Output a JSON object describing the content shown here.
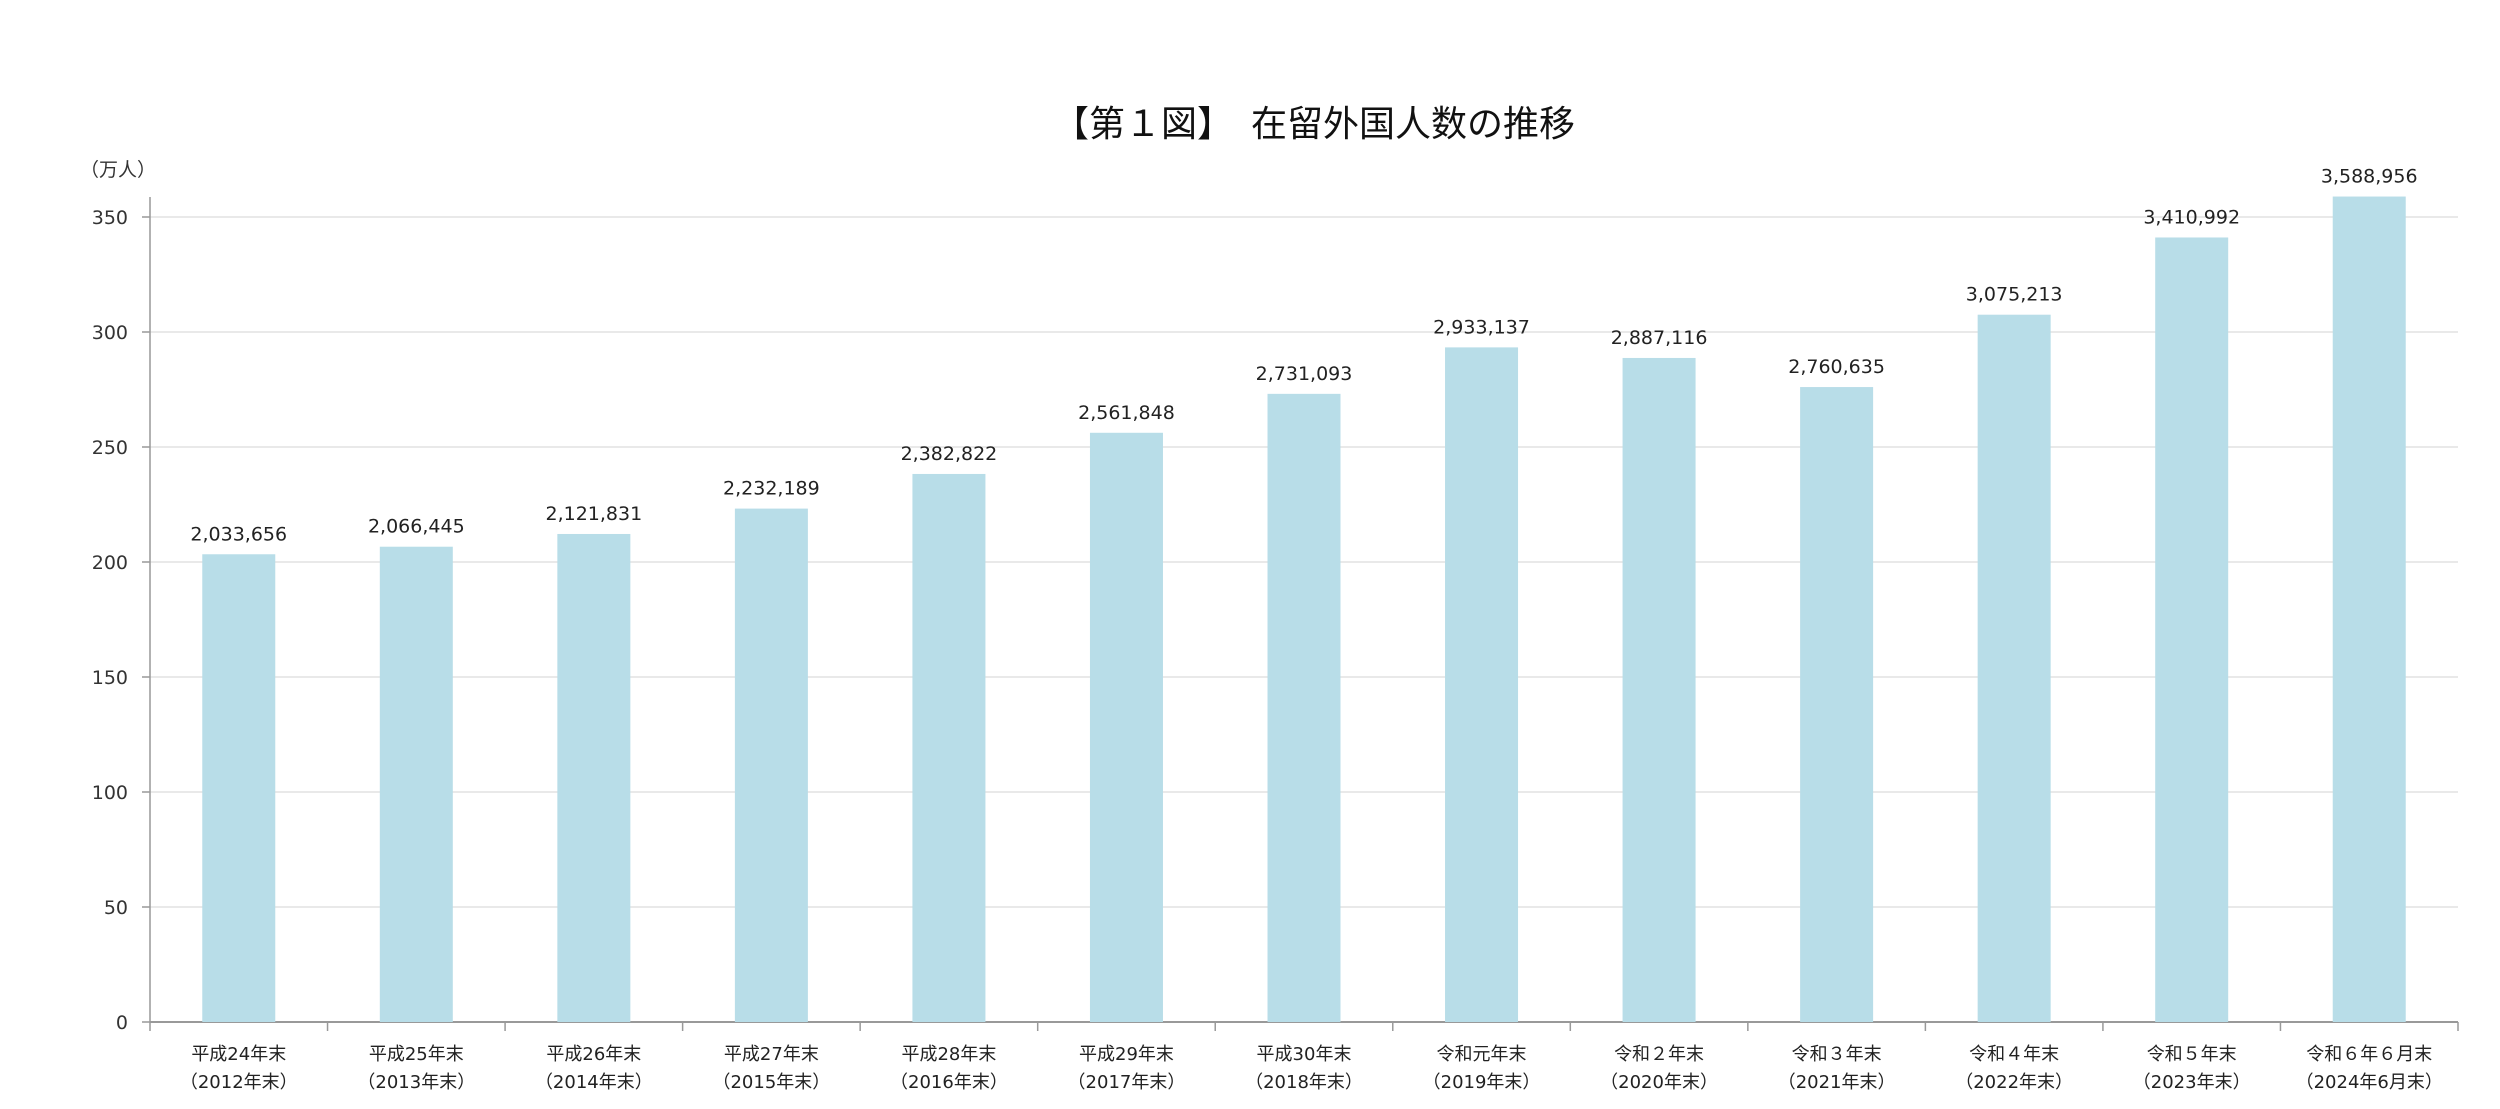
{
  "chart_data": {
    "type": "bar",
    "title": "【第１図】　在留外国人数の推移",
    "ylabel": "（万人）",
    "xlabel": "",
    "ylim": [
      0,
      350
    ],
    "yticks": [
      0,
      50,
      100,
      150,
      200,
      250,
      300,
      350
    ],
    "grid": true,
    "bar_color": "#b8dde8",
    "categories": [
      [
        "平成24年末",
        "（2012年末）"
      ],
      [
        "平成25年末",
        "（2013年末）"
      ],
      [
        "平成26年末",
        "（2014年末）"
      ],
      [
        "平成27年末",
        "（2015年末）"
      ],
      [
        "平成28年末",
        "（2016年末）"
      ],
      [
        "平成29年末",
        "（2017年末）"
      ],
      [
        "平成30年末",
        "（2018年末）"
      ],
      [
        "令和元年末",
        "（2019年末）"
      ],
      [
        "令和２年末",
        "（2020年末）"
      ],
      [
        "令和３年末",
        "（2021年末）"
      ],
      [
        "令和４年末",
        "（2022年末）"
      ],
      [
        "令和５年末",
        "（2023年末）"
      ],
      [
        "令和６年６月末",
        "（2024年6月末）"
      ]
    ],
    "values": [
      2033656,
      2066445,
      2121831,
      2232189,
      2382822,
      2561848,
      2731093,
      2933137,
      2887116,
      2760635,
      3075213,
      3410992,
      3588956
    ],
    "data_labels": [
      "2,033,656",
      "2,066,445",
      "2,121,831",
      "2,232,189",
      "2,382,822",
      "2,561,848",
      "2,731,093",
      "2,933,137",
      "2,887,116",
      "2,760,635",
      "3,075,213",
      "3,410,992",
      "3,588,956"
    ]
  }
}
